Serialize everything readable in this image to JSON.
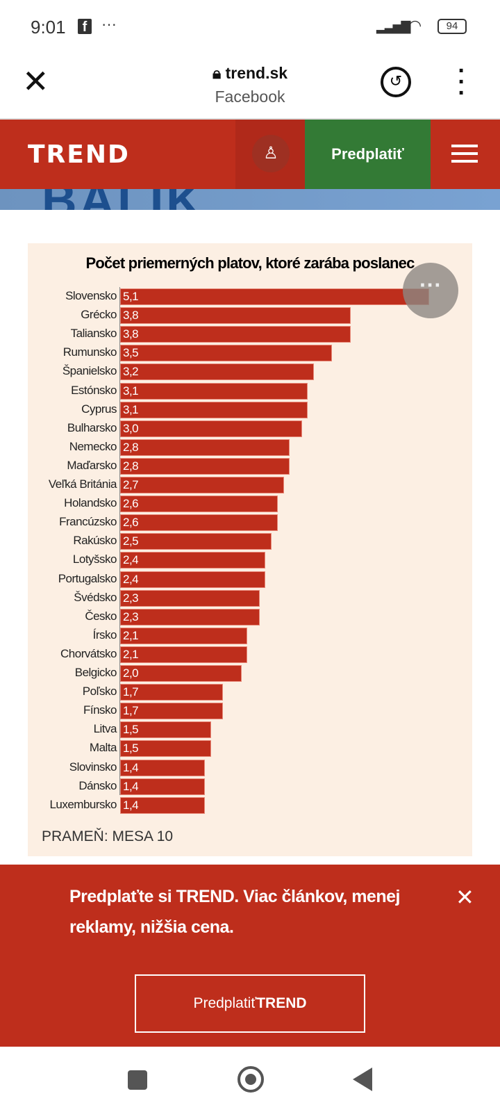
{
  "status": {
    "time": "9:01",
    "battery": "94",
    "notif_icons": [
      "facebook-icon",
      "more-dots-icon"
    ]
  },
  "browser": {
    "domain": "trend.sk",
    "subtitle": "Facebook"
  },
  "header": {
    "logo": "TREND",
    "subscribe": "Predplatiť",
    "strip_text": "BALIK"
  },
  "chart_data": {
    "type": "bar",
    "title": "Počet priemerných platov, ktoré zarába poslanec",
    "source": "PRAMEŇ: MESA 10",
    "categories": [
      "Slovensko",
      "Grécko",
      "Taliansko",
      "Rumunsko",
      "Španielsko",
      "Estónsko",
      "Cyprus",
      "Bulharsko",
      "Nemecko",
      "Maďarsko",
      "Veľká Británia",
      "Holandsko",
      "Francúzsko",
      "Rakúsko",
      "Lotyšsko",
      "Portugalsko",
      "Švédsko",
      "Česko",
      "Írsko",
      "Chorvátsko",
      "Belgicko",
      "Poľsko",
      "Fínsko",
      "Litva",
      "Malta",
      "Slovinsko",
      "Dánsko",
      "Luxembursko"
    ],
    "labels": [
      "5,1",
      "3,8",
      "3,8",
      "3,5",
      "3,2",
      "3,1",
      "3,1",
      "3,0",
      "2,8",
      "2,8",
      "2,7",
      "2,6",
      "2,6",
      "2,5",
      "2,4",
      "2,4",
      "2,3",
      "2,3",
      "2,1",
      "2,1",
      "2,0",
      "1,7",
      "1,7",
      "1,5",
      "1,5",
      "1,4",
      "1,4",
      "1,4"
    ],
    "values": [
      5.1,
      3.8,
      3.8,
      3.5,
      3.2,
      3.1,
      3.1,
      3.0,
      2.8,
      2.8,
      2.7,
      2.6,
      2.6,
      2.5,
      2.4,
      2.4,
      2.3,
      2.3,
      2.1,
      2.1,
      2.0,
      1.7,
      1.7,
      1.5,
      1.5,
      1.4,
      1.4,
      1.4
    ],
    "color": "#be2e1c",
    "orientation": "horizontal"
  },
  "banner": {
    "message": "Predplaťte si TREND. Viac článkov, menej reklamy, nižšia cena.",
    "button_prefix": "Predplatiť",
    "button_brand": "TREND"
  },
  "colors": {
    "brand": "#be2e1c",
    "subscribe": "#337a35",
    "panel": "#fcefe3"
  }
}
